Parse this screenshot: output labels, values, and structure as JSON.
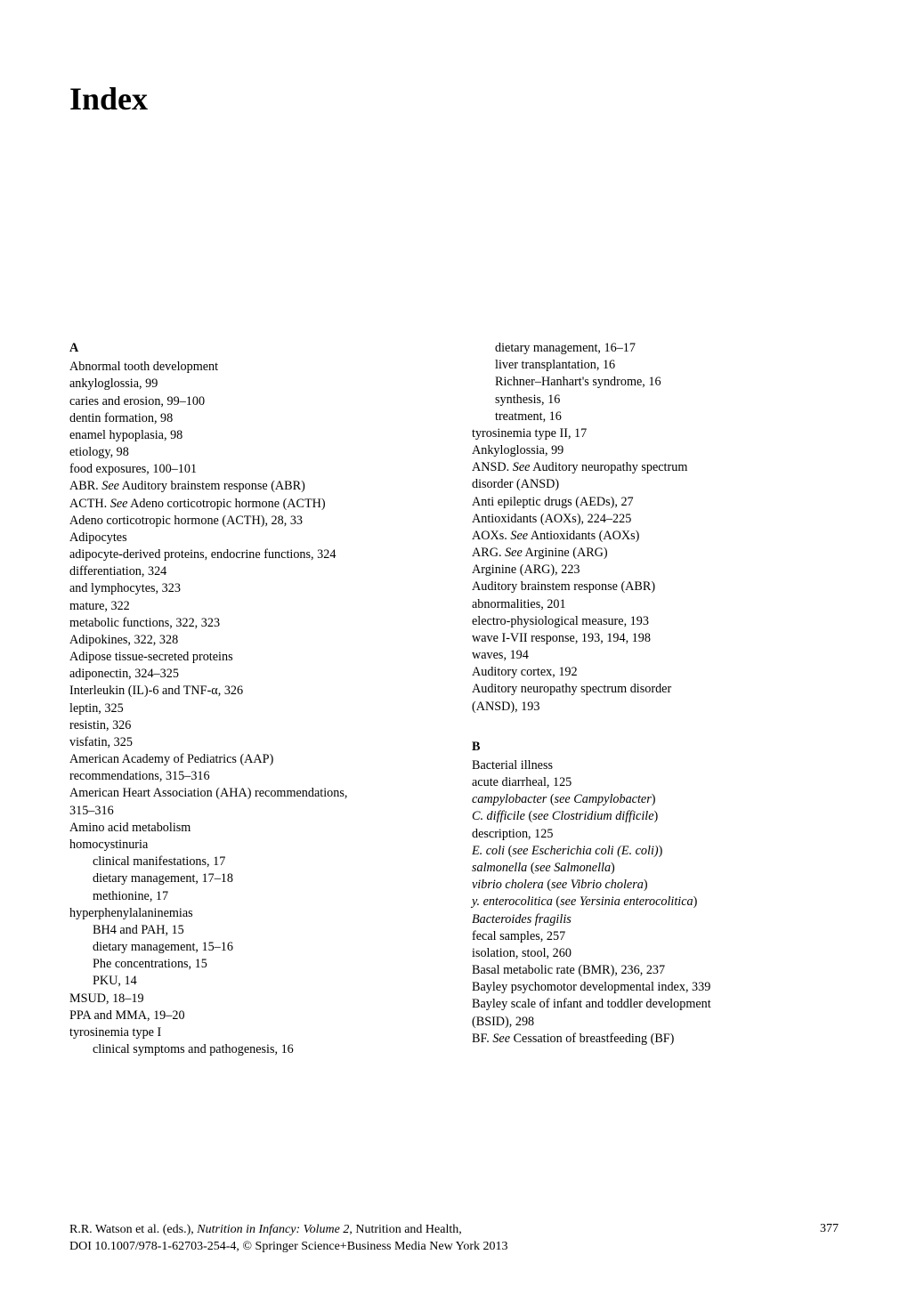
{
  "title": "Index",
  "section_a": "A",
  "section_b": "B",
  "col_left": [
    {
      "lvl": 0,
      "t": "Abnormal tooth development"
    },
    {
      "lvl": 1,
      "t": "ankyloglossia, 99"
    },
    {
      "lvl": 1,
      "t": "caries and erosion, 99–100"
    },
    {
      "lvl": 1,
      "t": "dentin formation, 98"
    },
    {
      "lvl": 1,
      "t": "enamel hypoplasia, 98"
    },
    {
      "lvl": 1,
      "t": "etiology, 98"
    },
    {
      "lvl": 1,
      "t": "food exposures, 100–101"
    },
    {
      "lvl": 0,
      "html": "ABR. <span class=\"italic\">See</span> Auditory brainstem response (ABR)"
    },
    {
      "lvl": 0,
      "html": "ACTH. <span class=\"italic\">See</span> Adeno corticotropic hormone (ACTH)"
    },
    {
      "lvl": 0,
      "t": "Adeno corticotropic hormone (ACTH), 28, 33"
    },
    {
      "lvl": 0,
      "t": "Adipocytes"
    },
    {
      "lvl": 1,
      "t": "adipocyte-derived proteins, endocrine functions, 324"
    },
    {
      "lvl": 1,
      "t": "differentiation, 324"
    },
    {
      "lvl": 1,
      "t": "and lymphocytes, 323"
    },
    {
      "lvl": 1,
      "t": "mature, 322"
    },
    {
      "lvl": 1,
      "t": "metabolic functions, 322, 323"
    },
    {
      "lvl": 0,
      "t": "Adipokines, 322, 328"
    },
    {
      "lvl": 0,
      "t": "Adipose tissue-secreted proteins"
    },
    {
      "lvl": 1,
      "t": "adiponectin, 324–325"
    },
    {
      "lvl": 1,
      "t": "Interleukin (IL)-6 and TNF-α, 326"
    },
    {
      "lvl": 1,
      "t": "leptin, 325"
    },
    {
      "lvl": 1,
      "t": "resistin, 326"
    },
    {
      "lvl": 1,
      "t": "visfatin, 325"
    },
    {
      "lvl": 0,
      "t": "American Academy of Pediatrics (AAP)"
    },
    {
      "lvl": "1b",
      "t": "recommendations, 315–316"
    },
    {
      "lvl": 0,
      "t": "American Heart Association (AHA) recommendations,"
    },
    {
      "lvl": "1b",
      "t": "315–316"
    },
    {
      "lvl": 0,
      "t": "Amino acid metabolism"
    },
    {
      "lvl": 1,
      "t": "homocystinuria"
    },
    {
      "lvl": 2,
      "t": "clinical manifestations, 17"
    },
    {
      "lvl": 2,
      "t": "dietary management, 17–18"
    },
    {
      "lvl": 2,
      "t": "methionine, 17"
    },
    {
      "lvl": 1,
      "t": "hyperphenylalaninemias"
    },
    {
      "lvl": 2,
      "t": "BH4 and PAH, 15"
    },
    {
      "lvl": 2,
      "t": "dietary management, 15–16"
    },
    {
      "lvl": 2,
      "t": "Phe concentrations, 15"
    },
    {
      "lvl": 2,
      "t": "PKU, 14"
    },
    {
      "lvl": 1,
      "t": "MSUD, 18–19"
    },
    {
      "lvl": 1,
      "t": "PPA and MMA, 19–20"
    },
    {
      "lvl": 1,
      "t": "tyrosinemia type I"
    },
    {
      "lvl": 2,
      "t": "clinical symptoms and pathogenesis, 16"
    }
  ],
  "col_right_a": [
    {
      "lvl": 2,
      "t": "dietary management, 16–17"
    },
    {
      "lvl": 2,
      "t": "liver transplantation, 16"
    },
    {
      "lvl": 2,
      "t": "Richner–Hanhart's syndrome, 16"
    },
    {
      "lvl": 2,
      "t": "synthesis, 16"
    },
    {
      "lvl": 2,
      "t": "treatment, 16"
    },
    {
      "lvl": 1,
      "t": "tyrosinemia type II, 17"
    },
    {
      "lvl": 0,
      "t": "Ankyloglossia, 99"
    },
    {
      "lvl": 0,
      "html": "ANSD. <span class=\"italic\">See</span> Auditory neuropathy spectrum"
    },
    {
      "lvl": "1b",
      "t": "disorder (ANSD)"
    },
    {
      "lvl": 0,
      "t": "Anti epileptic drugs (AEDs), 27"
    },
    {
      "lvl": 0,
      "t": "Antioxidants (AOXs), 224–225"
    },
    {
      "lvl": 0,
      "html": "AOXs. <span class=\"italic\">See</span> Antioxidants (AOXs)"
    },
    {
      "lvl": 0,
      "html": "ARG. <span class=\"italic\">See</span> Arginine (ARG)"
    },
    {
      "lvl": 0,
      "t": "Arginine (ARG), 223"
    },
    {
      "lvl": 0,
      "t": "Auditory brainstem response (ABR)"
    },
    {
      "lvl": 1,
      "t": "abnormalities, 201"
    },
    {
      "lvl": 1,
      "t": "electro-physiological measure, 193"
    },
    {
      "lvl": 1,
      "t": "wave I-VII response, 193, 194, 198"
    },
    {
      "lvl": 1,
      "t": "waves, 194"
    },
    {
      "lvl": 0,
      "t": "Auditory cortex, 192"
    },
    {
      "lvl": 0,
      "t": "Auditory neuropathy spectrum disorder"
    },
    {
      "lvl": "1b",
      "t": "(ANSD), 193"
    }
  ],
  "col_right_b": [
    {
      "lvl": 0,
      "t": "Bacterial illness"
    },
    {
      "lvl": 1,
      "t": "acute diarrheal, 125"
    },
    {
      "lvl": 1,
      "html": "<span class=\"italic\">campylobacter</span> (<span class=\"italic\">see Campylobacter</span>)"
    },
    {
      "lvl": 1,
      "html": "<span class=\"italic\">C. difficile</span> (<span class=\"italic\">see Clostridium difficile</span>)"
    },
    {
      "lvl": 1,
      "t": "description, 125"
    },
    {
      "lvl": 1,
      "html": "<span class=\"italic\">E. coli</span> (<span class=\"italic\">see Escherichia coli (E. coli)</span>)"
    },
    {
      "lvl": 1,
      "html": "<span class=\"italic\">salmonella</span> (<span class=\"italic\">see Salmonella</span>)"
    },
    {
      "lvl": 1,
      "html": "<span class=\"italic\">vibrio cholera</span> (<span class=\"italic\">see Vibrio cholera</span>)"
    },
    {
      "lvl": 1,
      "html": "<span class=\"italic\">y. enterocolitica</span> (<span class=\"italic\">see Yersinia enterocolitica</span>)"
    },
    {
      "lvl": 0,
      "html": "<span class=\"italic\">Bacteroides fragilis</span>"
    },
    {
      "lvl": 1,
      "t": "fecal samples, 257"
    },
    {
      "lvl": 1,
      "t": "isolation, stool, 260"
    },
    {
      "lvl": 0,
      "t": "Basal metabolic rate (BMR), 236, 237"
    },
    {
      "lvl": 0,
      "t": "Bayley psychomotor developmental index, 339"
    },
    {
      "lvl": 0,
      "t": "Bayley scale of infant and toddler development"
    },
    {
      "lvl": "1b",
      "t": "(BSID), 298"
    },
    {
      "lvl": 0,
      "html": "BF. <span class=\"italic\">See</span> Cessation of breastfeeding (BF)"
    }
  ],
  "footer": {
    "line1_pre": "R.R. Watson et al. (eds.), ",
    "line1_italic": "Nutrition in Infancy: Volume 2",
    "line1_post": ", Nutrition and Health,",
    "line2": "DOI 10.1007/978-1-62703-254-4, © Springer Science+Business Media New York 2013",
    "page": "377"
  }
}
